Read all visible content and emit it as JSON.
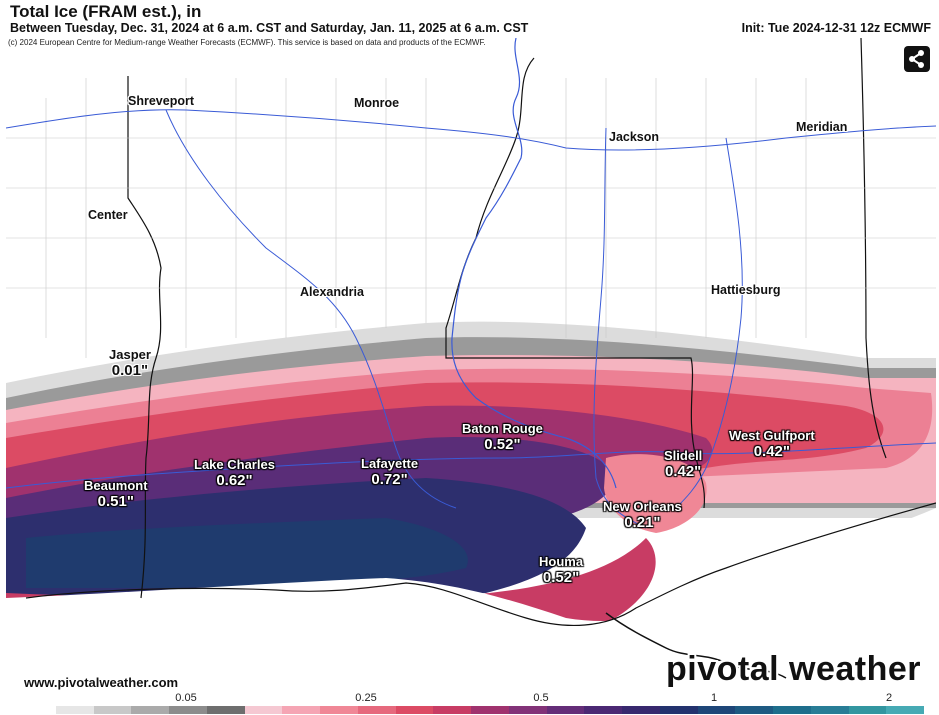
{
  "header": {
    "title": "Total Ice (FRAM est.), in",
    "subtitle": "Between Tuesday, Dec. 31, 2024 at 6 a.m. CST and Saturday, Jan. 11, 2025 at 6 a.m. CST",
    "init": "Init: Tue 2024-12-31 12z ECMWF"
  },
  "map": {
    "copyright": "(c) 2024 European Centre for Medium-range Weather Forecasts (ECMWF). This service is based on data and products of the ECMWF.",
    "share_icon": "share-icon",
    "cities": [
      "Shreveport",
      "Monroe",
      "Jackson",
      "Meridian",
      "Center",
      "Alexandria",
      "Hattiesburg"
    ],
    "points": [
      {
        "name": "Jasper",
        "value": "0.01\""
      },
      {
        "name": "Beaumont",
        "value": "0.51\""
      },
      {
        "name": "Lake Charles",
        "value": "0.62\""
      },
      {
        "name": "Lafayette",
        "value": "0.72\""
      },
      {
        "name": "Baton Rouge",
        "value": "0.52\""
      },
      {
        "name": "Slidell",
        "value": "0.42\""
      },
      {
        "name": "West Gulfport",
        "value": "0.42\""
      },
      {
        "name": "New Orleans",
        "value": "0.21\""
      },
      {
        "name": "Houma",
        "value": "0.52\""
      }
    ]
  },
  "footer": {
    "url": "www.pivotalweather.com",
    "brand": "pivotal weather"
  },
  "scale": {
    "ticks": [
      "0.05",
      "0.25",
      "0.5",
      "1",
      "2"
    ],
    "colors": [
      "#ffffff",
      "#e6e6e6",
      "#c8c8c8",
      "#aaaaaa",
      "#8c8c8c",
      "#6e6e6e",
      "#f5c8d2",
      "#f5a5b4",
      "#f08796",
      "#e6697d",
      "#dc4b64",
      "#c83c64",
      "#a0326e",
      "#823278",
      "#642d78",
      "#4b2873",
      "#37286e",
      "#23326e",
      "#1e4678",
      "#1e5a82",
      "#1e6e8c",
      "#287d96",
      "#3296a0",
      "#46aab4"
    ]
  }
}
